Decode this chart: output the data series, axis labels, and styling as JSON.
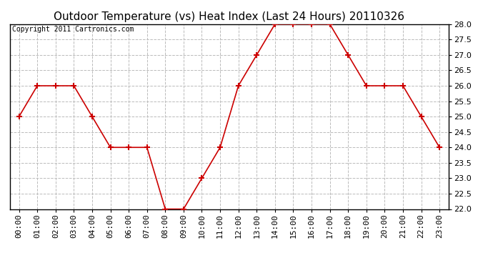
{
  "title": "Outdoor Temperature (vs) Heat Index (Last 24 Hours) 20110326",
  "copyright": "Copyright 2011 Cartronics.com",
  "x_labels": [
    "00:00",
    "01:00",
    "02:00",
    "03:00",
    "04:00",
    "05:00",
    "06:00",
    "07:00",
    "08:00",
    "09:00",
    "10:00",
    "11:00",
    "12:00",
    "13:00",
    "14:00",
    "15:00",
    "16:00",
    "17:00",
    "18:00",
    "19:00",
    "20:00",
    "21:00",
    "22:00",
    "23:00"
  ],
  "y_values": [
    25.0,
    26.0,
    26.0,
    26.0,
    25.0,
    24.0,
    24.0,
    24.0,
    22.0,
    22.0,
    23.0,
    24.0,
    26.0,
    27.0,
    28.0,
    28.0,
    28.0,
    28.0,
    27.0,
    26.0,
    26.0,
    26.0,
    25.0,
    24.0
  ],
  "ylim": [
    22.0,
    28.0
  ],
  "yticks": [
    22.0,
    22.5,
    23.0,
    23.5,
    24.0,
    24.5,
    25.0,
    25.5,
    26.0,
    26.5,
    27.0,
    27.5,
    28.0
  ],
  "line_color": "#cc0000",
  "marker": "+",
  "marker_size": 6,
  "marker_linewidth": 1.5,
  "grid_color": "#bbbbbb",
  "grid_linestyle": "--",
  "background_color": "#ffffff",
  "plot_bg_color": "#ffffff",
  "title_fontsize": 11,
  "copyright_fontsize": 7,
  "tick_fontsize": 8
}
